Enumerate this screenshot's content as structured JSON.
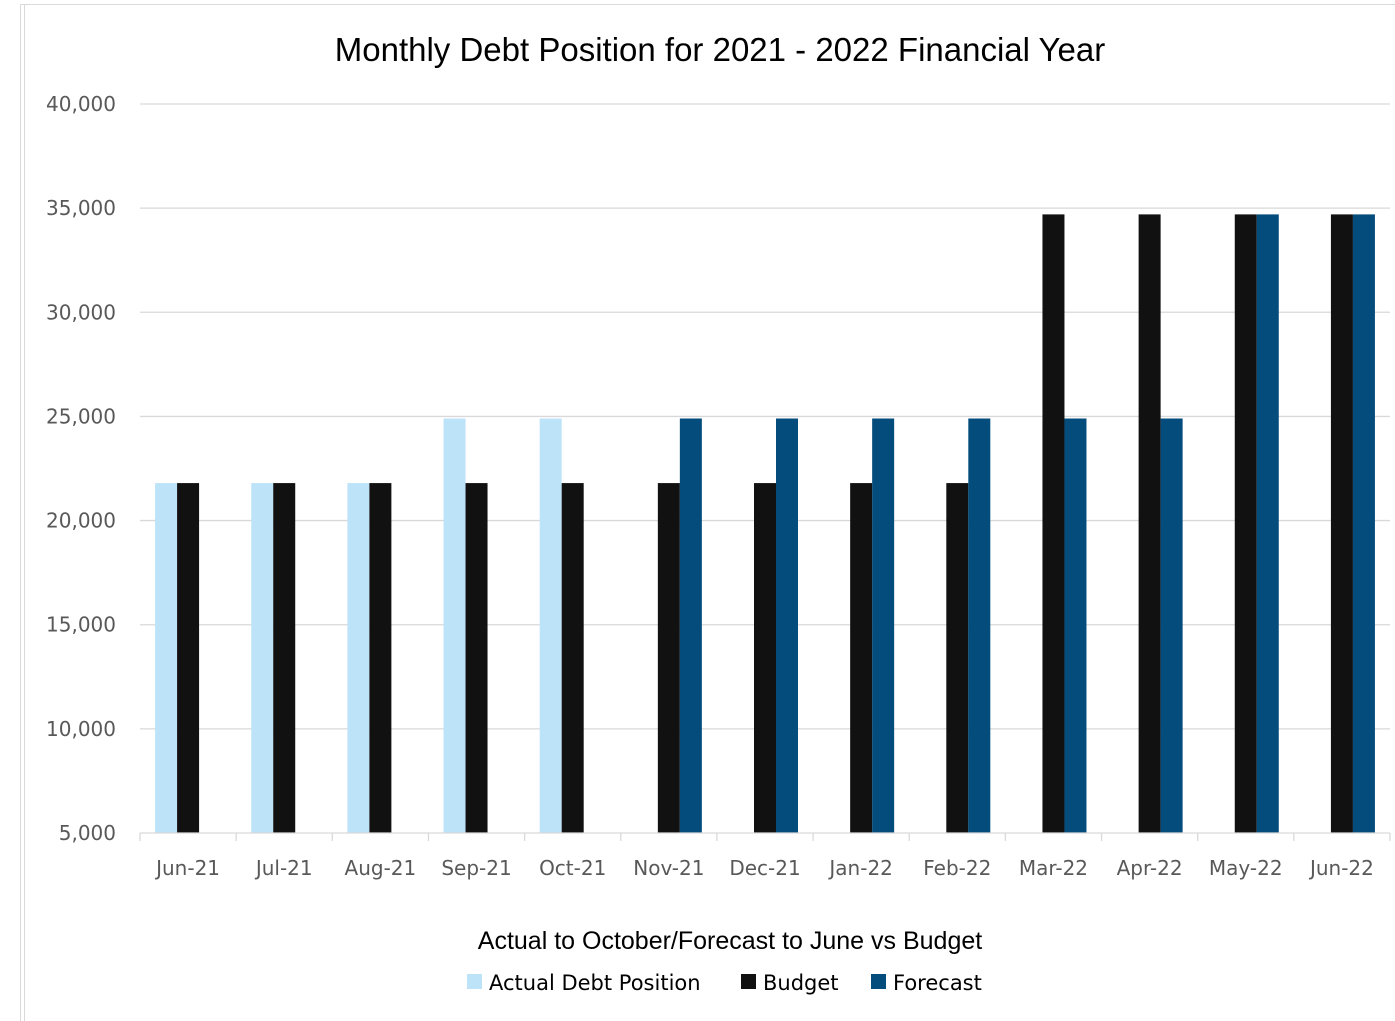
{
  "chart_data": {
    "type": "bar",
    "title": "Monthly Debt Position for 2021 - 2022 Financial Year",
    "subtitle": "Actual to October/Forecast to  June vs Budget",
    "xlabel": "",
    "ylabel": "",
    "ylim": [
      5000,
      40000
    ],
    "yticks": [
      5000,
      10000,
      15000,
      20000,
      25000,
      30000,
      35000,
      40000
    ],
    "ytick_labels": [
      "5,000",
      "10,000",
      "15,000",
      "20,000",
      "25,000",
      "30,000",
      "35,000",
      "40,000"
    ],
    "grid": true,
    "legend_position": "bottom",
    "categories": [
      "Jun-21",
      "Jul-21",
      "Aug-21",
      "Sep-21",
      "Oct-21",
      "Nov-21",
      "Dec-21",
      "Jan-22",
      "Feb-22",
      "Mar-22",
      "Apr-22",
      "May-22",
      "Jun-22"
    ],
    "series": [
      {
        "name": "Actual Debt Position",
        "color": "#bde3f8",
        "values": [
          21800,
          21800,
          21800,
          24900,
          24900,
          null,
          null,
          null,
          null,
          null,
          null,
          null,
          null
        ]
      },
      {
        "name": "Budget",
        "color": "#111111",
        "values": [
          21800,
          21800,
          21800,
          21800,
          21800,
          21800,
          21800,
          21800,
          21800,
          34700,
          34700,
          34700,
          34700
        ]
      },
      {
        "name": "Forecast",
        "color": "#034c7b",
        "values": [
          null,
          null,
          null,
          null,
          null,
          24900,
          24900,
          24900,
          24900,
          24900,
          24900,
          34700,
          34700
        ]
      }
    ]
  }
}
